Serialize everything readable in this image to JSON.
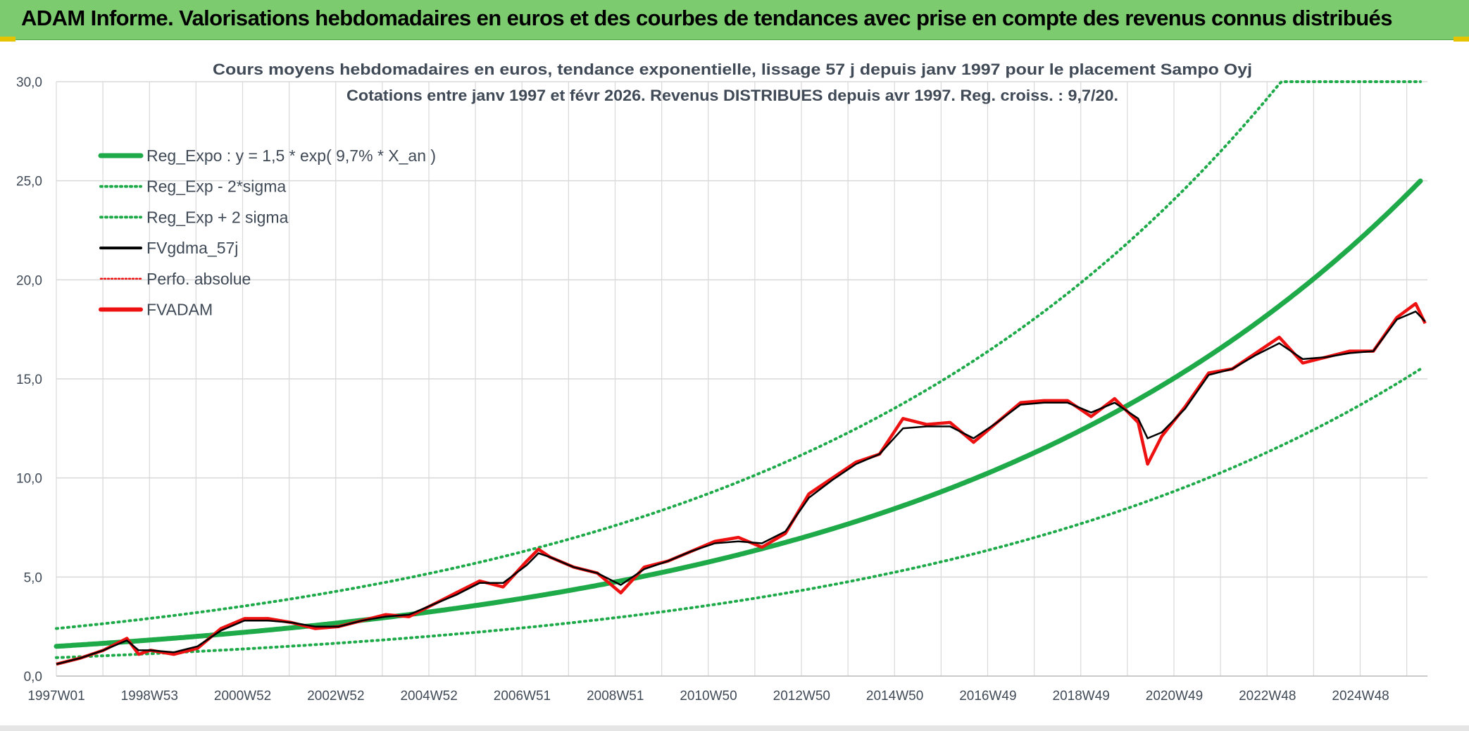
{
  "header": {
    "banner_title": "ADAM Informe. Valorisations hebdomadaires en euros et des courbes de tendances avec prise en compte des revenus connus distribués"
  },
  "colors": {
    "banner_bg": "#7ccb6e",
    "reg_green": "#1faa4a",
    "black": "#000000",
    "red": "#ee1111",
    "grid": "#d9d9d9"
  },
  "chart_data": {
    "type": "line",
    "title": "Cours moyens hebdomadaires en euros, tendance exponentielle, lissage 57 j depuis janv 1997 pour le placement Sampo Oyj",
    "subtitle": "Cotations entre janv 1997 et févr 2026. Revenus DISTRIBUES depuis avr 1997. Reg. croiss. : 9,7/20.",
    "xlabel": "",
    "ylabel": "",
    "x_ticks": [
      "1997W01",
      "1998W53",
      "2000W52",
      "2002W52",
      "2004W52",
      "2006W51",
      "2008W51",
      "2010W50",
      "2012W50",
      "2014W50",
      "2016W49",
      "2018W49",
      "2020W49",
      "2022W48",
      "2024W48"
    ],
    "x_range": [
      1997.0,
      2026.15
    ],
    "ylim": [
      0,
      30
    ],
    "y_ticks": [
      "0,0",
      "5,0",
      "10,0",
      "15,0",
      "20,0",
      "25,0",
      "30,0"
    ],
    "y_tick_values": [
      0,
      5,
      10,
      15,
      20,
      25,
      30
    ],
    "grid": true,
    "legend_position": "top-left",
    "legend": [
      "Reg_Expo : y = 1,5 * exp( 9,7% *  X_an )",
      "Reg_Exp - 2*sigma",
      "Reg_Exp + 2 sigma",
      "FVgdma_57j",
      "Perfo. absolue",
      "FVADAM"
    ],
    "regression": {
      "a": 1.5,
      "rate": 0.097,
      "start_year": 1997.0,
      "lower_factor": 0.62,
      "upper_factor": 1.6
    },
    "series": [
      {
        "name": "FVADAM",
        "x": [
          1997.0,
          1997.5,
          1998.0,
          1998.5,
          1998.75,
          1999.0,
          1999.5,
          2000.0,
          2000.5,
          2001.0,
          2001.5,
          2002.0,
          2002.5,
          2003.0,
          2003.5,
          2004.0,
          2004.5,
          2005.0,
          2005.5,
          2006.0,
          2006.5,
          2007.0,
          2007.25,
          2007.5,
          2008.0,
          2008.5,
          2009.0,
          2009.5,
          2010.0,
          2010.5,
          2011.0,
          2011.5,
          2012.0,
          2012.5,
          2013.0,
          2013.5,
          2014.0,
          2014.5,
          2015.0,
          2015.5,
          2016.0,
          2016.5,
          2017.0,
          2017.5,
          2018.0,
          2018.5,
          2019.0,
          2019.5,
          2020.0,
          2020.2,
          2020.5,
          2021.0,
          2021.5,
          2022.0,
          2022.5,
          2023.0,
          2023.5,
          2024.0,
          2024.5,
          2025.0,
          2025.5,
          2025.9,
          2026.1
        ],
        "y": [
          0.6,
          0.9,
          1.3,
          1.9,
          1.1,
          1.3,
          1.1,
          1.4,
          2.4,
          2.9,
          2.9,
          2.7,
          2.4,
          2.5,
          2.8,
          3.1,
          3.0,
          3.6,
          4.2,
          4.8,
          4.5,
          5.8,
          6.4,
          6.0,
          5.5,
          5.2,
          4.2,
          5.5,
          5.8,
          6.3,
          6.8,
          7.0,
          6.5,
          7.2,
          9.2,
          10.0,
          10.8,
          11.2,
          13.0,
          12.7,
          12.8,
          11.8,
          12.8,
          13.8,
          13.9,
          13.9,
          13.1,
          14.0,
          12.8,
          10.7,
          12.1,
          13.6,
          15.3,
          15.5,
          16.3,
          17.1,
          15.8,
          16.1,
          16.4,
          16.4,
          18.1,
          18.8,
          17.8
        ]
      },
      {
        "name": "FVgdma_57j",
        "x": [
          1997.0,
          1997.5,
          1998.0,
          1998.5,
          1998.75,
          1999.0,
          1999.5,
          2000.0,
          2000.5,
          2001.0,
          2001.5,
          2002.0,
          2002.5,
          2003.0,
          2003.5,
          2004.0,
          2004.5,
          2005.0,
          2005.5,
          2006.0,
          2006.5,
          2007.0,
          2007.25,
          2007.5,
          2008.0,
          2008.5,
          2009.0,
          2009.5,
          2010.0,
          2010.5,
          2011.0,
          2011.5,
          2012.0,
          2012.5,
          2013.0,
          2013.5,
          2014.0,
          2014.5,
          2015.0,
          2015.5,
          2016.0,
          2016.5,
          2017.0,
          2017.5,
          2018.0,
          2018.5,
          2019.0,
          2019.5,
          2020.0,
          2020.2,
          2020.5,
          2021.0,
          2021.5,
          2022.0,
          2022.5,
          2023.0,
          2023.5,
          2024.0,
          2024.5,
          2025.0,
          2025.5,
          2025.9,
          2026.1
        ],
        "y": [
          0.6,
          0.9,
          1.3,
          1.8,
          1.3,
          1.3,
          1.2,
          1.5,
          2.3,
          2.8,
          2.8,
          2.7,
          2.5,
          2.5,
          2.8,
          3.0,
          3.1,
          3.6,
          4.1,
          4.7,
          4.7,
          5.6,
          6.2,
          6.0,
          5.5,
          5.2,
          4.6,
          5.4,
          5.8,
          6.3,
          6.7,
          6.8,
          6.7,
          7.3,
          9.0,
          9.9,
          10.7,
          11.2,
          12.5,
          12.6,
          12.6,
          12.0,
          12.8,
          13.7,
          13.8,
          13.8,
          13.3,
          13.8,
          13.0,
          12.0,
          12.3,
          13.5,
          15.2,
          15.5,
          16.2,
          16.8,
          16.0,
          16.1,
          16.3,
          16.4,
          18.0,
          18.4,
          17.9
        ]
      }
    ]
  }
}
